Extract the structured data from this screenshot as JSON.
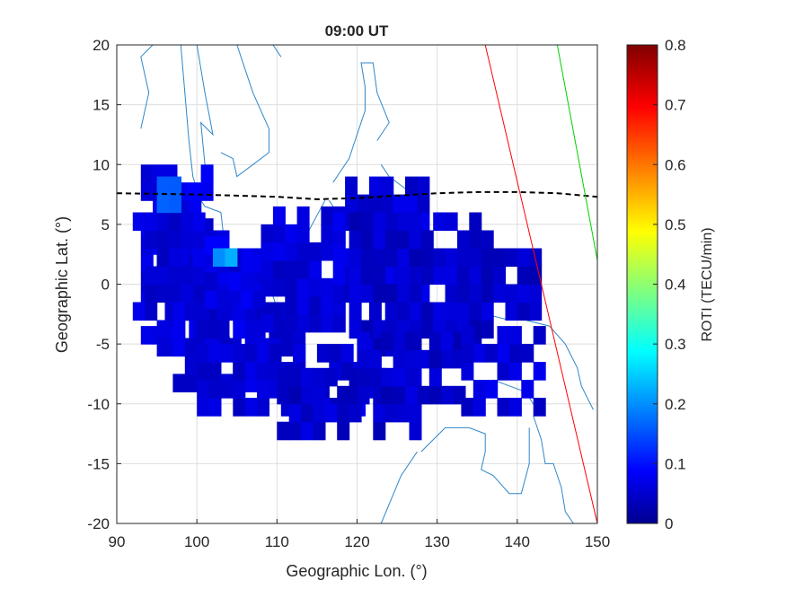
{
  "chart_data": {
    "type": "heatmap",
    "title": "09:00 UT",
    "xlabel": "Geographic Lon. (°)",
    "ylabel": "Geographic Lat. (°)",
    "xlim": [
      90,
      150
    ],
    "ylim": [
      -20,
      20
    ],
    "xticks": [
      "90",
      "100",
      "110",
      "120",
      "130",
      "140",
      "150"
    ],
    "yticks": [
      "20",
      "15",
      "10",
      "5",
      "0",
      "-5",
      "-10",
      "-15",
      "-20"
    ],
    "grid": true,
    "colorbar": {
      "label": "ROTI (TECU/min)",
      "range": [
        0,
        0.8
      ],
      "ticks": [
        "0.8",
        "0.7",
        "0.6",
        "0.5",
        "0.4",
        "0.3",
        "0.2",
        "0.1",
        "0"
      ],
      "colormap": "jet"
    },
    "roti_patches": [
      {
        "lon": [
          93,
          101
        ],
        "lat": [
          9.5,
          -5
        ],
        "value": 0.08
      },
      {
        "lon": [
          92,
          104
        ],
        "lat": [
          5.5,
          -3
        ],
        "value": 0.07
      },
      {
        "lon": [
          95,
          108
        ],
        "lat": [
          2,
          -6
        ],
        "value": 0.07
      },
      {
        "lon": [
          97,
          113
        ],
        "lat": [
          -2,
          -9
        ],
        "value": 0.07
      },
      {
        "lon": [
          100,
          122
        ],
        "lat": [
          -5,
          -11
        ],
        "value": 0.07
      },
      {
        "lon": [
          110,
          128
        ],
        "lat": [
          -8,
          -13
        ],
        "value": 0.06
      },
      {
        "lon": [
          101,
          108
        ],
        "lat": [
          4,
          -2
        ],
        "value": 0.08
      },
      {
        "lon": [
          108,
          118
        ],
        "lat": [
          6,
          -4
        ],
        "value": 0.07
      },
      {
        "lon": [
          117,
          128
        ],
        "lat": [
          8,
          -3
        ],
        "value": 0.07
      },
      {
        "lon": [
          119,
          136
        ],
        "lat": [
          5,
          -6
        ],
        "value": 0.06
      },
      {
        "lon": [
          131,
          143
        ],
        "lat": [
          3,
          -3
        ],
        "value": 0.06
      },
      {
        "lon": [
          120,
          133
        ],
        "lat": [
          -5,
          -10
        ],
        "value": 0.06
      },
      {
        "lon": [
          133,
          143
        ],
        "lat": [
          -4,
          -11
        ],
        "value": 0.07
      },
      {
        "lon": [
          102,
          104
        ],
        "lat": [
          3,
          1.5
        ],
        "value": 0.22
      },
      {
        "lon": [
          95,
          98
        ],
        "lat": [
          8,
          6
        ],
        "value": 0.18
      }
    ],
    "lines": [
      {
        "name": "magnetic-equator",
        "style": "dashed",
        "color": "#000000",
        "x": [
          90,
          100,
          110,
          115,
          120,
          125,
          130,
          135,
          140,
          145,
          150
        ],
        "y": [
          7.6,
          7.5,
          7.3,
          7.1,
          7.2,
          7.4,
          7.6,
          7.7,
          7.7,
          7.6,
          7.3
        ]
      },
      {
        "name": "red-track",
        "style": "solid",
        "color": "#ff0000",
        "x": [
          136,
          150
        ],
        "y": [
          20,
          -20
        ]
      },
      {
        "name": "green-track",
        "style": "solid",
        "color": "#00d000",
        "x": [
          145,
          150
        ],
        "y": [
          20,
          2
        ]
      }
    ],
    "coastline_color": "#2f86c8"
  }
}
